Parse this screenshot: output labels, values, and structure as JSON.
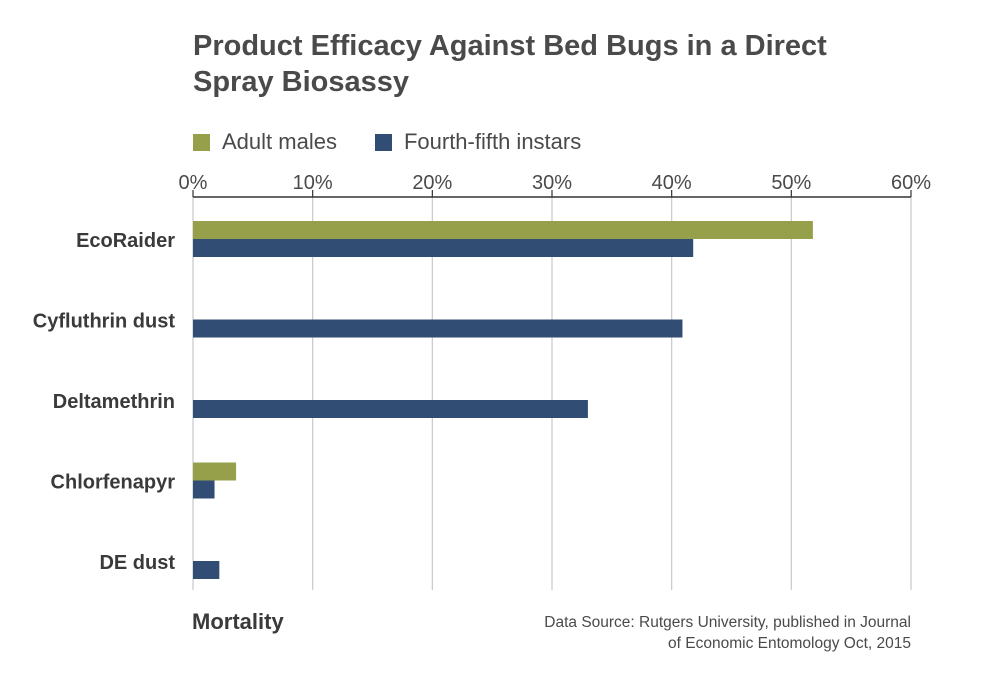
{
  "title_lines": [
    "Product Efficacy Against Bed Bugs in a Direct",
    "Spray Biosassy"
  ],
  "footer": {
    "xlabel": "Mortality",
    "source_lines": [
      "Data Source: Rutgers University,  published in Journal",
      "of Economic Entomology Oct, 2015"
    ]
  },
  "colors": {
    "adult": "#96a04b",
    "instar": "#314d74",
    "grid": "#c8c8c8",
    "axis": "#333333"
  },
  "chart_data": {
    "type": "bar",
    "orientation": "horizontal",
    "title": "Product Efficacy Against Bed Bugs in a Direct Spray Biosassy",
    "xlabel": "Mortality",
    "ylabel": "",
    "categories": [
      "EcoRaider",
      "Cyfluthrin dust",
      "Deltamethrin",
      "Chlorfenapyr",
      "DE dust"
    ],
    "series": [
      {
        "name": "Adult males",
        "values": [
          51.8,
          0,
          0,
          3.6,
          0
        ]
      },
      {
        "name": "Fourth-fifth instars",
        "values": [
          41.8,
          40.9,
          33.0,
          1.8,
          2.2
        ]
      }
    ],
    "xlim": [
      0,
      60
    ],
    "x_ticks": [
      "0%",
      "10%",
      "20%",
      "30%",
      "40%",
      "50%",
      "60%"
    ],
    "tick_values": [
      0,
      10,
      20,
      30,
      40,
      50,
      60
    ],
    "x_axis_position": "top",
    "legend_position": "top-left",
    "grid": true
  }
}
